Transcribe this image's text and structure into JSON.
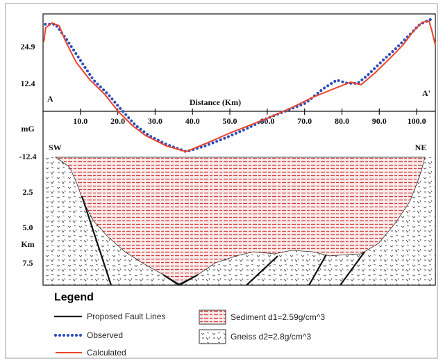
{
  "chart_data": {
    "type": "line",
    "x_label": "Distance (Km)",
    "y_label": "mG",
    "xlim": [
      0,
      105
    ],
    "ylim": [
      -12.4,
      36.3
    ],
    "xticks": [
      {
        "value": 10,
        "label": "10.0"
      },
      {
        "value": 20,
        "label": "20.0"
      },
      {
        "value": 30,
        "label": "30.0"
      },
      {
        "value": 40,
        "label": "40.0"
      },
      {
        "value": 50,
        "label": "50.0"
      },
      {
        "value": 60,
        "label": "60.0"
      },
      {
        "value": 70,
        "label": "70.0"
      },
      {
        "value": 80,
        "label": "80.0"
      },
      {
        "value": 90,
        "label": "90.0"
      },
      {
        "value": 100,
        "label": "100.0"
      }
    ],
    "yticks": [
      -12.4,
      12.4,
      24.9
    ],
    "series": [
      {
        "name": "Observed",
        "color": "#2f4fbf",
        "x": [
          0.6,
          3.3,
          6.1,
          9.8,
          13.5,
          17.3,
          21.0,
          24.7,
          28.4,
          33.1,
          38.3,
          43.3,
          48.9,
          54.5,
          60.0,
          64.7,
          70.3,
          74.9,
          78.6,
          81.5,
          84.2,
          86.9,
          90.7,
          94.4,
          98.1,
          100.9,
          103.7
        ],
        "values": [
          32.8,
          32.8,
          28.0,
          20.9,
          13.8,
          9.1,
          3.7,
          -1.5,
          -5.1,
          -8.1,
          -10.5,
          -8.6,
          -5.8,
          -2.7,
          0.8,
          3.2,
          6.0,
          10.8,
          13.8,
          12.7,
          12.7,
          15.5,
          20.2,
          24.5,
          29.2,
          32.8,
          34.4
        ]
      },
      {
        "name": "Calculated",
        "color": "#e8452c",
        "x": [
          0.2,
          0.7,
          2.4,
          4.3,
          6.1,
          8.9,
          12.6,
          16.4,
          20.1,
          23.8,
          27.5,
          33.1,
          38.3,
          44.2,
          49.8,
          55.4,
          60.9,
          66.5,
          72.1,
          77.7,
          82.3,
          85.1,
          88.8,
          92.6,
          96.3,
          99.1,
          101.5,
          103.3,
          104.1,
          105.0
        ],
        "values": [
          26.8,
          31.6,
          33.2,
          32.3,
          26.8,
          19.8,
          13.8,
          9.1,
          3.2,
          -1.5,
          -5.1,
          -8.6,
          -10.5,
          -7.4,
          -4.3,
          -1.5,
          1.3,
          4.4,
          7.9,
          10.8,
          13.1,
          12.2,
          16.2,
          20.9,
          25.7,
          30.4,
          33.5,
          33.9,
          30.4,
          25.7
        ]
      }
    ],
    "annotations": [
      "A",
      "A'",
      "SW",
      "NE"
    ],
    "section": {
      "depth_label": "Km",
      "depth_lim": [
        0,
        9
      ],
      "depth_ticks": [
        {
          "value": 2.5,
          "label": "2.5"
        },
        {
          "value": 5,
          "label": "5.0"
        },
        {
          "value": 7.5,
          "label": "7.5"
        }
      ],
      "faults": "Proposed Fault Lines",
      "units": [
        {
          "name": "Sediment d1=2.59g/cm^3",
          "color": "#d23a3a"
        },
        {
          "name": "Gneiss d2=2.8g/cm^3",
          "color": "#555555"
        }
      ]
    },
    "legend_title": "Legend"
  }
}
